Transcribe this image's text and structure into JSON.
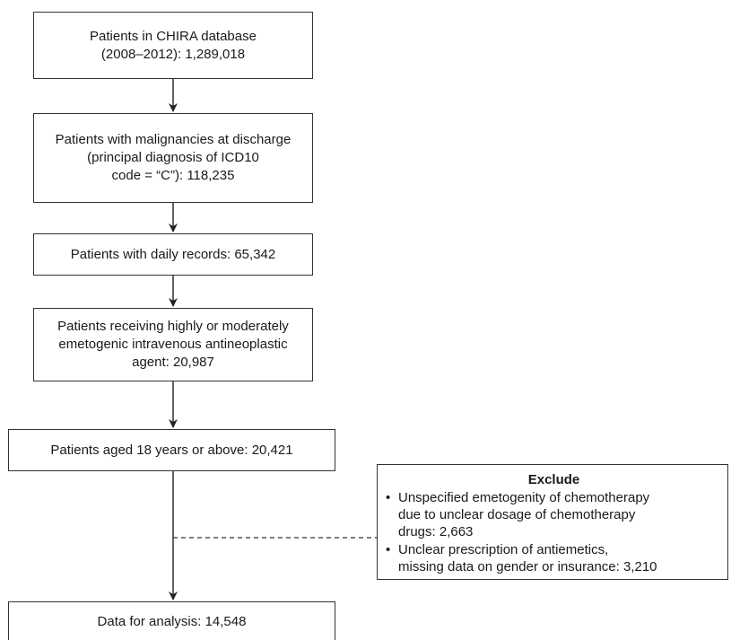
{
  "boxes": {
    "step1": {
      "lines": [
        "Patients in CHIRA database",
        "(2008–2012): 1,289,018"
      ]
    },
    "step2": {
      "lines": [
        "Patients with malignancies at discharge",
        "(principal diagnosis of ICD10",
        "code = “C”): 118,235"
      ]
    },
    "step3": {
      "lines": [
        "Patients with daily records: 65,342"
      ]
    },
    "step4": {
      "lines": [
        "Patients receiving highly or moderately",
        "emetogenic intravenous antineoplastic",
        "agent: 20,987"
      ]
    },
    "step5": {
      "lines": [
        "Patients aged 18 years or above: 20,421"
      ]
    },
    "final": {
      "lines": [
        "Data for analysis: 14,548"
      ]
    }
  },
  "exclude": {
    "title": "Exclude",
    "bullet_symbol": "•",
    "items": [
      {
        "lines": [
          "Unspecified emetogenity of chemotherapy",
          "due to unclear dosage of chemotherapy",
          "drugs: 2,663"
        ]
      },
      {
        "lines": [
          "Unclear prescription of antiemetics,",
          "missing data on gender or insurance: 3,210"
        ]
      }
    ]
  }
}
